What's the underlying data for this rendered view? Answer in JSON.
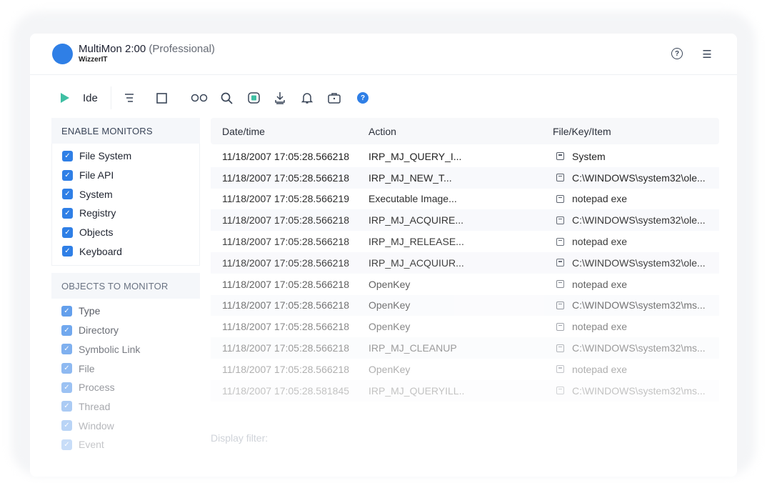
{
  "app": {
    "name": "MultiMon 2:00",
    "edition": "(Professional)",
    "company": "WizzerIT",
    "accent": "#2f7fe6"
  },
  "header_icons": [
    "help-circle-icon",
    "menu-lines-icon"
  ],
  "toolbar": {
    "run_label": "Ide",
    "icons": [
      "play-icon",
      "list-icon",
      "stop-square-icon",
      "glasses-icon",
      "search-icon",
      "capture-icon",
      "download-icon",
      "bell-icon",
      "briefcase-icon",
      "help-icon"
    ]
  },
  "sidebar": {
    "enable_title": "ENABLE MONITORS",
    "enable_items": [
      {
        "label": "File System",
        "checked": true
      },
      {
        "label": "File API",
        "checked": true
      },
      {
        "label": "System",
        "checked": true
      },
      {
        "label": "Registry",
        "checked": true
      },
      {
        "label": "Objects",
        "checked": true
      },
      {
        "label": "Keyboard",
        "checked": true
      }
    ],
    "objects_title": "OBJECTS TO MONITOR",
    "objects_items": [
      {
        "label": "Type",
        "checked": true
      },
      {
        "label": "Directory",
        "checked": true
      },
      {
        "label": "Symbolic Link",
        "checked": true
      },
      {
        "label": "File",
        "checked": true
      },
      {
        "label": "Process",
        "checked": true
      },
      {
        "label": "Thread",
        "checked": true
      },
      {
        "label": "Window",
        "checked": true
      },
      {
        "label": "Event",
        "checked": true
      }
    ]
  },
  "table": {
    "columns": [
      "Date/time",
      "Action",
      "File/Key/Item"
    ],
    "rows": [
      [
        "11/18/2007 17:05:28.566218",
        "IRP_MJ_QUERY_I...",
        "System"
      ],
      [
        "11/18/2007 17:05:28.566218",
        "IRP_MJ_NEW_T...",
        "C:\\WINDOWS\\system32\\ole..."
      ],
      [
        "11/18/2007 17:05:28.566219",
        "Executable Image...",
        "notepad exe"
      ],
      [
        "11/18/2007 17:05:28.566218",
        "IRP_MJ_ACQUIRE...",
        "C:\\WINDOWS\\system32\\ole..."
      ],
      [
        "11/18/2007 17:05:28.566218",
        "IRP_MJ_RELEASE...",
        "notepad exe"
      ],
      [
        "11/18/2007 17:05:28.566218",
        "IRP_MJ_ACQUIUR...",
        "C:\\WINDOWS\\system32\\ole..."
      ],
      [
        "11/18/2007 17:05:28.566218",
        "OpenKey",
        "notepad exe"
      ],
      [
        "11/18/2007 17:05:28.566218",
        "OpenKey",
        "C:\\WINDOWS\\system32\\ms..."
      ],
      [
        "11/18/2007 17:05:28.566218",
        "OpenKey",
        "notepad exe"
      ],
      [
        "11/18/2007 17:05:28.566218",
        "IRP_MJ_CLEANUP",
        "C:\\WINDOWS\\system32\\ms..."
      ],
      [
        "11/18/2007 17:05:28.566218",
        "OpenKey",
        "notepad exe"
      ],
      [
        "11/18/2007 17:05:28.581845",
        "IRP_MJ_QUERYILL..",
        "C:\\WINDOWS\\system32\\ms..."
      ]
    ]
  },
  "filter": {
    "label": "Display filter:"
  }
}
